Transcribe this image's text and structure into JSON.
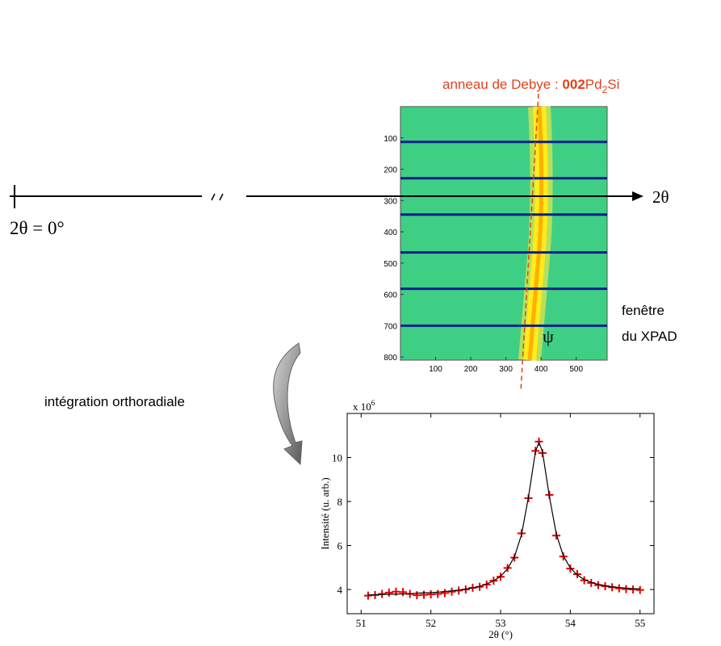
{
  "annotations": {
    "debye_ring": {
      "text": "anneau de Debye : ",
      "reflection": "002",
      "phase": "Pd",
      "subscript": "2",
      "phase_end": "Si"
    },
    "origin": "2θ = 0°",
    "axis_end": "2θ",
    "psi": "ψ",
    "window_line1": "fenêtre",
    "window_line2": "du XPAD",
    "integration": "intégration orthoradiale"
  },
  "detector": {
    "xlim": [
      0,
      588
    ],
    "ylim": [
      0,
      810
    ],
    "xticks": [
      100,
      200,
      300,
      400,
      500
    ],
    "yticks": [
      100,
      200,
      300,
      400,
      500,
      600,
      700,
      800
    ],
    "bands": [
      113,
      229,
      345,
      466,
      582,
      700
    ],
    "band_color": "#0b1f8a"
  },
  "chart_data": {
    "type": "line",
    "y_multiplier": {
      "base": "x 10",
      "exponent": "6"
    },
    "xlabel": "2θ (°)",
    "ylabel": "Intensité (u. arb.)",
    "xlim": [
      50.8,
      55.2
    ],
    "ylim": [
      2.9,
      12
    ],
    "xticks": [
      51,
      52,
      53,
      54,
      55
    ],
    "yticks": [
      4,
      6,
      8,
      10
    ],
    "x": [
      51.1,
      51.2,
      51.3,
      51.4,
      51.5,
      51.6,
      51.7,
      51.8,
      51.9,
      52.0,
      52.1,
      52.2,
      52.3,
      52.4,
      52.5,
      52.6,
      52.7,
      52.8,
      52.9,
      53.0,
      53.1,
      53.2,
      53.3,
      53.4,
      53.5,
      53.55,
      53.6,
      53.7,
      53.8,
      53.9,
      54.0,
      54.1,
      54.2,
      54.3,
      54.4,
      54.5,
      54.6,
      54.7,
      54.8,
      54.9,
      55.0
    ],
    "series": [
      {
        "color": "#e00000",
        "kind": "points",
        "values": [
          3.72,
          3.75,
          3.8,
          3.86,
          3.9,
          3.88,
          3.8,
          3.74,
          3.76,
          3.78,
          3.8,
          3.84,
          3.9,
          3.95,
          4.0,
          4.08,
          4.12,
          4.22,
          4.4,
          4.58,
          4.98,
          5.45,
          6.55,
          8.15,
          10.3,
          10.72,
          10.2,
          8.3,
          6.45,
          5.5,
          4.95,
          4.7,
          4.42,
          4.3,
          4.2,
          4.15,
          4.1,
          4.05,
          4.02,
          4.0,
          3.98
        ]
      },
      {
        "color": "#000000",
        "kind": "line",
        "values": [
          3.75,
          3.76,
          3.77,
          3.78,
          3.79,
          3.8,
          3.81,
          3.83,
          3.85,
          3.86,
          3.88,
          3.91,
          3.94,
          3.97,
          4.02,
          4.07,
          4.14,
          4.25,
          4.39,
          4.6,
          4.94,
          5.5,
          6.49,
          8.2,
          10.27,
          10.68,
          10.28,
          8.22,
          6.51,
          5.53,
          4.98,
          4.66,
          4.45,
          4.32,
          4.23,
          4.17,
          4.12,
          4.09,
          4.06,
          4.04,
          4.03
        ]
      }
    ]
  }
}
